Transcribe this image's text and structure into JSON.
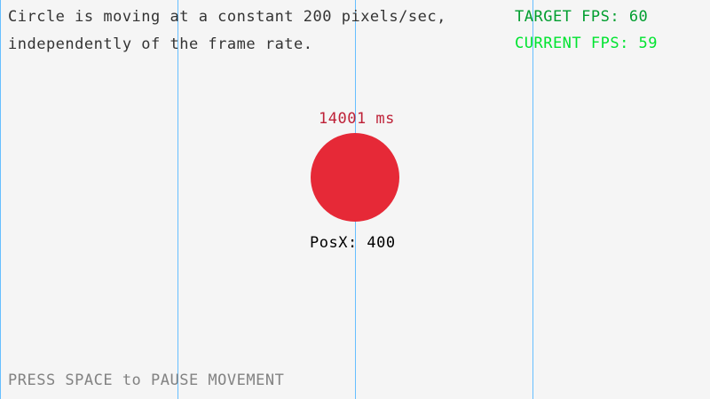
{
  "info": {
    "line1": "Circle is moving at a constant 200 pixels/sec,",
    "line2": "independently of the frame rate."
  },
  "fps": {
    "target": "TARGET FPS: 60",
    "current": "CURRENT FPS: 59"
  },
  "timer": "14001 ms",
  "position": "PosX: 400",
  "hint": "PRESS SPACE to PAUSE MOVEMENT",
  "colors": {
    "background": "#f5f5f5",
    "grid_lines": "#66bfff",
    "circle": "#e62937",
    "timer": "#be2137",
    "target_fps": "#009e2f",
    "current_fps": "#00e430",
    "hint": "#828282",
    "text": "#000000"
  }
}
